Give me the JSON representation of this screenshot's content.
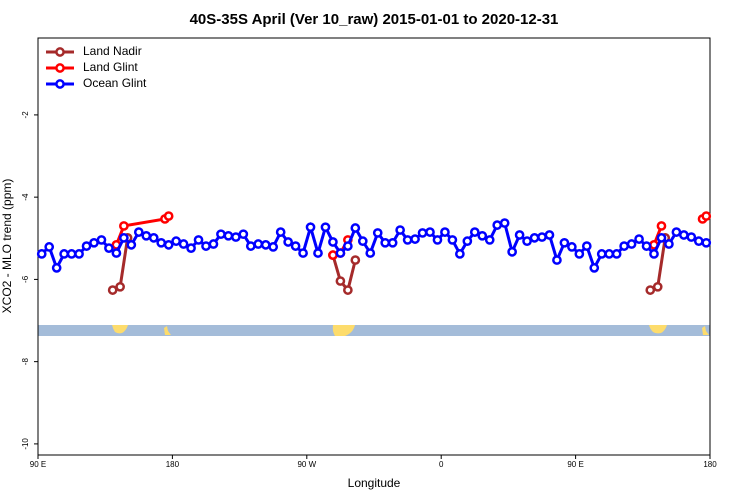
{
  "chart_data": {
    "type": "line",
    "title": "40S-35S April (Ver 10_raw)   2015-01-01 to 2020-12-31",
    "xlabel": "Longitude",
    "ylabel": "XCO2 - MLO trend (ppm)",
    "xlim": [
      90,
      540
    ],
    "ylim": [
      -10.27,
      -0.13
    ],
    "xticks": [
      {
        "value": 90,
        "label": "90 E"
      },
      180,
      {
        "value": 270,
        "label": "90 W"
      },
      {
        "value": 360,
        "label": "0"
      },
      {
        "value": 450,
        "label": "90 E"
      },
      {
        "value": 540,
        "label": "180"
      }
    ],
    "yticks": [
      -10,
      -8,
      -6,
      -4,
      -2
    ],
    "legend": "top-left",
    "series": [
      {
        "name": "Land Nadir",
        "color": "#a52a2a",
        "x": [
          140,
          145,
          150,
          null,
          287.5,
          292.5,
          297.5,
          302.5,
          null,
          500,
          505,
          510
        ],
        "values": [
          -6.26,
          -6.18,
          -4.99,
          null,
          -5.41,
          -6.04,
          -6.26,
          -5.53,
          null,
          -6.26,
          -6.18,
          -4.99
        ]
      },
      {
        "name": "Land Glint",
        "color": "#ff0000",
        "x": [
          142.5,
          147.5,
          175,
          177.5,
          null,
          287.5,
          292.5,
          297.5,
          null,
          502.5,
          507.5,
          null,
          535,
          537.5
        ],
        "values": [
          -5.16,
          -4.7,
          -4.53,
          -4.46,
          null,
          -5.41,
          -5.36,
          -5.04,
          null,
          -5.16,
          -4.7,
          null,
          -4.53,
          -4.46
        ]
      },
      {
        "name": "Ocean Glint",
        "color": "#0000ff",
        "x": [
          92.5,
          97.5,
          102.5,
          107.5,
          112.5,
          117.5,
          122.5,
          127.5,
          132.5,
          137.5,
          142.5,
          147.5,
          152.5,
          157.5,
          162.5,
          167.5,
          172.5,
          177.5,
          182.5,
          187.5,
          192.5,
          197.5,
          202.5,
          207.5,
          212.5,
          217.5,
          222.5,
          227.5,
          232.5,
          237.5,
          242.5,
          247.5,
          252.5,
          257.5,
          262.5,
          267.5,
          272.5,
          277.5,
          282.5,
          287.5,
          292.5,
          297.5,
          302.5,
          307.5,
          312.5,
          317.5,
          322.5,
          327.5,
          332.5,
          337.5,
          342.5,
          347.5,
          352.5,
          357.5,
          362.5,
          367.5,
          372.5,
          377.5,
          382.5,
          387.5,
          392.5,
          397.5,
          402.5,
          407.5,
          412.5,
          417.5,
          422.5,
          427.5,
          432.5,
          437.5,
          442.5,
          447.5,
          452.5,
          457.5,
          462.5,
          467.5,
          472.5,
          477.5,
          482.5,
          487.5,
          492.5,
          497.5,
          502.5,
          507.5,
          512.5,
          517.5,
          522.5,
          527.5,
          532.5,
          537.5
        ],
        "values": [
          -5.38,
          -5.21,
          -5.72,
          -5.38,
          -5.38,
          -5.38,
          -5.19,
          -5.11,
          -5.04,
          -5.24,
          -5.36,
          -4.99,
          -5.16,
          -4.85,
          -4.94,
          -4.99,
          -5.11,
          -5.16,
          -5.07,
          -5.14,
          -5.24,
          -5.04,
          -5.19,
          -5.14,
          -4.9,
          -4.94,
          -4.97,
          -4.9,
          -5.19,
          -5.14,
          -5.16,
          -5.21,
          -4.85,
          -5.09,
          -5.19,
          -5.36,
          -4.73,
          -5.36,
          -4.73,
          -5.09,
          -5.36,
          -5.19,
          -4.75,
          -5.07,
          -5.36,
          -4.87,
          -5.11,
          -5.11,
          -4.8,
          -5.04,
          -5.02,
          -4.87,
          -4.85,
          -5.04,
          -4.85,
          -5.04,
          -5.38,
          -5.07,
          -4.85,
          -4.94,
          -5.04,
          -4.68,
          -4.63,
          -5.33,
          -4.92,
          -5.07,
          -4.99,
          -4.97,
          -4.92,
          -5.53,
          -5.11,
          -5.21,
          -5.38,
          -5.19,
          -5.72,
          -5.38,
          -5.38,
          -5.38,
          -5.19,
          -5.14,
          -5.02,
          -5.19,
          -5.38,
          -4.99,
          -5.14,
          -4.85,
          -4.92,
          -4.97,
          -5.07,
          -5.11
        ]
      }
    ]
  }
}
